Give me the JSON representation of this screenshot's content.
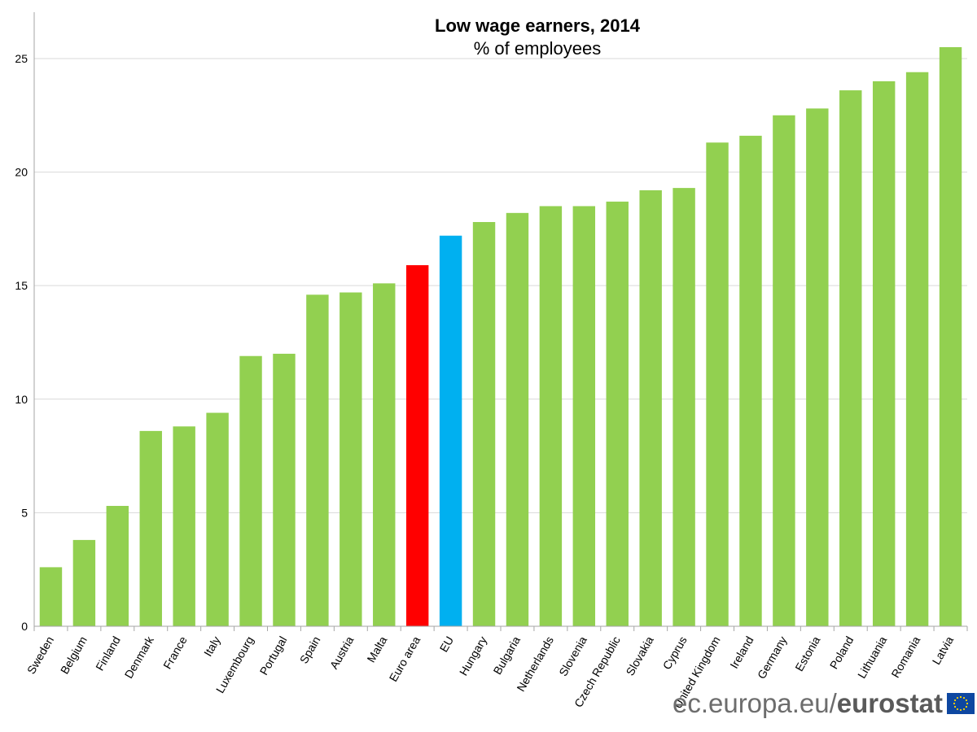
{
  "chart_data": {
    "type": "bar",
    "title": "Low wage earners, 2014",
    "subtitle": "% of employees",
    "xlabel": "",
    "ylabel": "",
    "ylim": [
      0,
      25.5
    ],
    "yticks": [
      0,
      5,
      10,
      15,
      20,
      25
    ],
    "grid": true,
    "categories": [
      "Sweden",
      "Belgium",
      "Finland",
      "Denmark",
      "France",
      "Italy",
      "Luxembourg",
      "Portugal",
      "Spain",
      "Austria",
      "Malta",
      "Euro area",
      "EU",
      "Hungary",
      "Bulgaria",
      "Netherlands",
      "Slovenia",
      "Czech Republic",
      "Slovakia",
      "Cyprus",
      "United Kingdom",
      "Ireland",
      "Germany",
      "Estonia",
      "Poland",
      "Lithuania",
      "Romania",
      "Latvia"
    ],
    "values": [
      2.6,
      3.8,
      5.3,
      8.6,
      8.8,
      9.4,
      11.9,
      12.0,
      14.6,
      14.7,
      15.1,
      15.9,
      17.2,
      17.8,
      18.2,
      18.5,
      18.5,
      18.7,
      19.2,
      19.3,
      21.3,
      21.6,
      22.5,
      22.8,
      23.6,
      24.0,
      24.4,
      25.5
    ],
    "colors": {
      "default": "#92d050",
      "Euro area": "#ff0000",
      "EU": "#00b0f0"
    }
  },
  "footer": {
    "site": "ec.europa.eu/",
    "brand": "eurostat"
  }
}
